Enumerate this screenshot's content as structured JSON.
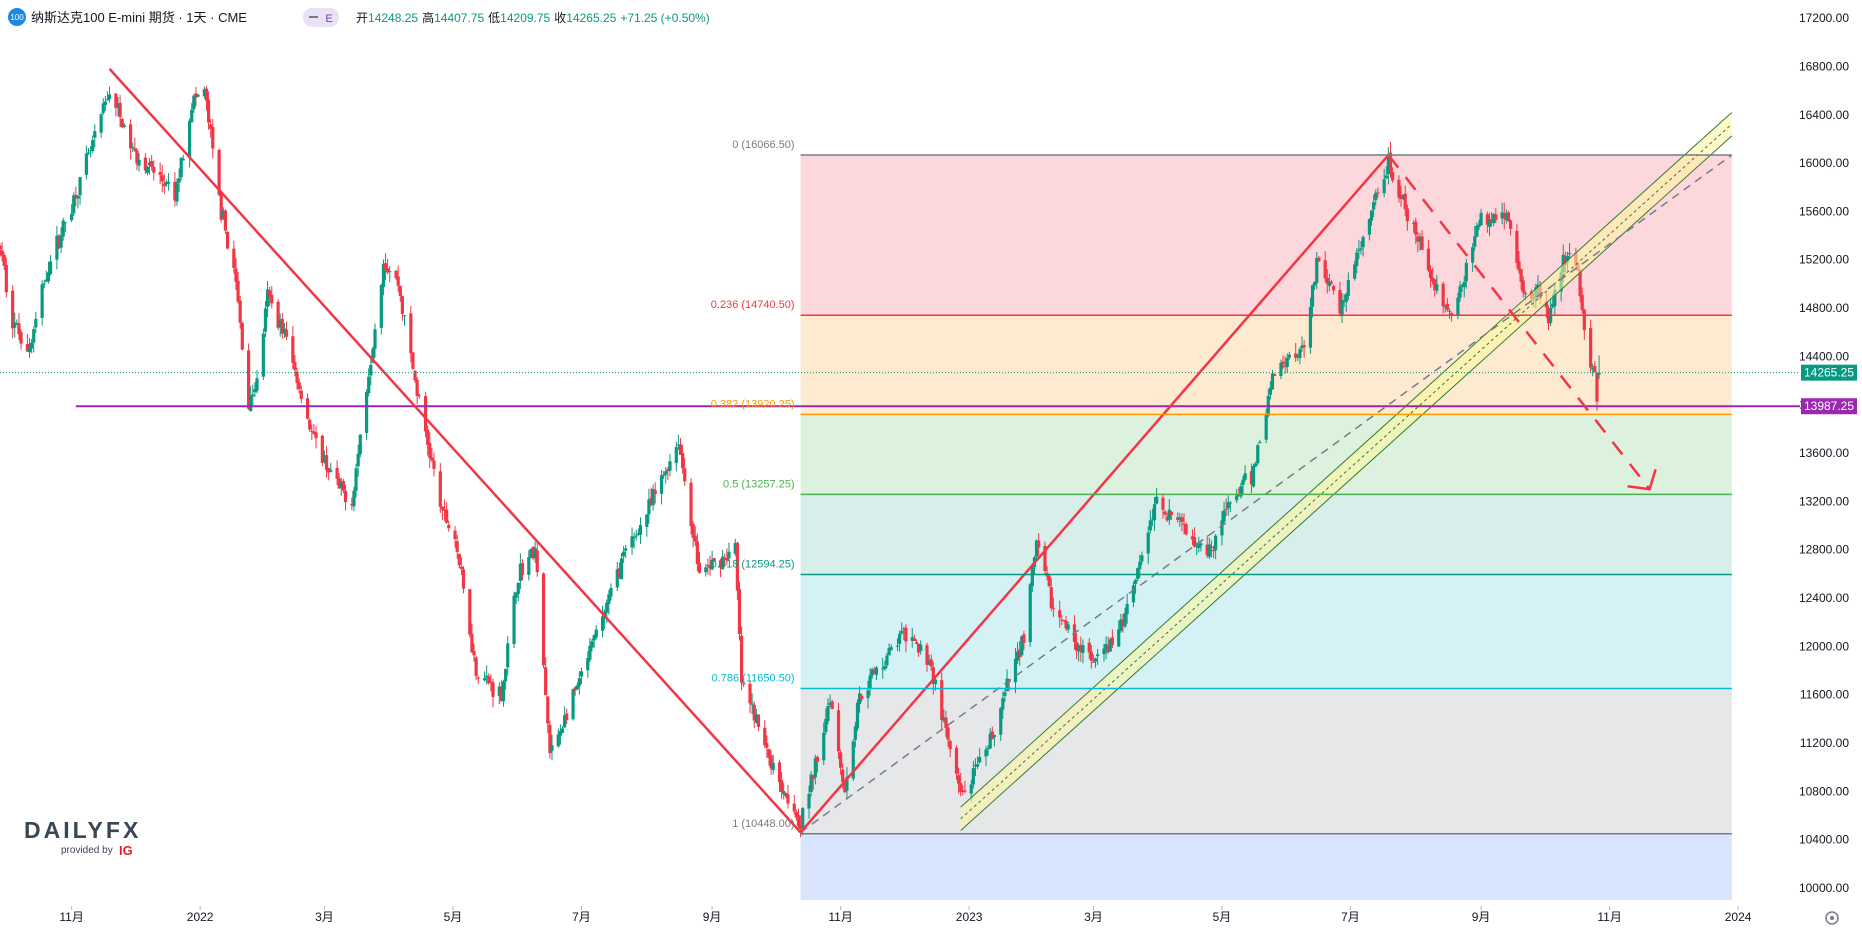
{
  "header": {
    "symbol_badge": "100",
    "title": "纳斯达克100 E-mini 期货 · 1天 · CME",
    "event_badge": "E",
    "ohlc_labels": [
      "开",
      "高",
      "低",
      "收"
    ],
    "open": "14248.25",
    "high": "14407.75",
    "low": "14209.75",
    "close": "14265.25",
    "change": "+71.25 (+0.50%)"
  },
  "brand": {
    "logo_text": "DAILYFX",
    "provided_by": "provided by",
    "provider": "IG"
  },
  "colors": {
    "up": "#089981",
    "down": "#f23645",
    "trend": "#f23645",
    "support": "#9c27b0",
    "price_tag": "#089981"
  },
  "icons": {
    "settings": "gear-icon"
  },
  "chart_data": {
    "type": "candlestick",
    "symbol": "纳斯达克100 E-mini 期货",
    "interval": "1天",
    "exchange": "CME",
    "ylim": [
      9900,
      17350
    ],
    "y_ticks": [
      10000,
      10400,
      10800,
      11200,
      11600,
      12000,
      12400,
      12800,
      13200,
      13600,
      14000,
      14400,
      14800,
      15200,
      15600,
      16000,
      16400,
      16800,
      17200
    ],
    "y_tick_labels": [
      "10000.00",
      "10400.00",
      "10800.00",
      "11200.00",
      "11600.00",
      "12000.00",
      "12400.00",
      "12800.00",
      "13200.00",
      "13600.00",
      "14000.00",
      "14400.00",
      "14800.00",
      "15200.00",
      "15600.00",
      "16000.00",
      "16400.00",
      "16800.00",
      "17200.00"
    ],
    "x_range": [
      "2021-09-28",
      "2024-01-28"
    ],
    "x_ticks": [
      {
        "date": "2021-11-01",
        "label": "11月"
      },
      {
        "date": "2022-01-01",
        "label": "2022"
      },
      {
        "date": "2022-03-01",
        "label": "3月"
      },
      {
        "date": "2022-05-01",
        "label": "5月"
      },
      {
        "date": "2022-07-01",
        "label": "7月"
      },
      {
        "date": "2022-09-01",
        "label": "9月"
      },
      {
        "date": "2022-11-01",
        "label": "11月"
      },
      {
        "date": "2023-01-01",
        "label": "2023"
      },
      {
        "date": "2023-03-01",
        "label": "3月"
      },
      {
        "date": "2023-05-01",
        "label": "5月"
      },
      {
        "date": "2023-07-01",
        "label": "7月"
      },
      {
        "date": "2023-09-01",
        "label": "9月"
      },
      {
        "date": "2023-11-01",
        "label": "11月"
      },
      {
        "date": "2024-01-01",
        "label": "2024"
      }
    ],
    "anchors": [
      [
        "2021-09-28",
        15300
      ],
      [
        "2021-10-04",
        14700
      ],
      [
        "2021-10-12",
        14450
      ],
      [
        "2021-10-20",
        15100
      ],
      [
        "2021-11-01",
        15650
      ],
      [
        "2021-11-10",
        16100
      ],
      [
        "2021-11-19",
        16600
      ],
      [
        "2021-11-30",
        16100
      ],
      [
        "2021-12-14",
        15850
      ],
      [
        "2021-12-20",
        15700
      ],
      [
        "2021-12-28",
        16500
      ],
      [
        "2022-01-03",
        16600
      ],
      [
        "2022-01-10",
        15700
      ],
      [
        "2022-01-18",
        15000
      ],
      [
        "2022-01-24",
        14000
      ],
      [
        "2022-01-28",
        14200
      ],
      [
        "2022-02-02",
        14900
      ],
      [
        "2022-02-10",
        14600
      ],
      [
        "2022-02-24",
        13700
      ],
      [
        "2022-03-08",
        13300
      ],
      [
        "2022-03-14",
        13200
      ],
      [
        "2022-03-29",
        15200
      ],
      [
        "2022-04-05",
        15000
      ],
      [
        "2022-04-14",
        14100
      ],
      [
        "2022-04-26",
        13100
      ],
      [
        "2022-05-02",
        12900
      ],
      [
        "2022-05-12",
        11800
      ],
      [
        "2022-05-24",
        11600
      ],
      [
        "2022-06-01",
        12600
      ],
      [
        "2022-06-09",
        12800
      ],
      [
        "2022-06-16",
        11100
      ],
      [
        "2022-06-30",
        11700
      ],
      [
        "2022-07-08",
        12100
      ],
      [
        "2022-07-20",
        12700
      ],
      [
        "2022-08-01",
        13100
      ],
      [
        "2022-08-16",
        13700
      ],
      [
        "2022-08-26",
        12600
      ],
      [
        "2022-09-12",
        12800
      ],
      [
        "2022-09-15",
        11700
      ],
      [
        "2022-09-30",
        11000
      ],
      [
        "2022-10-13",
        10550
      ],
      [
        "2022-10-20",
        11000
      ],
      [
        "2022-10-27",
        11600
      ],
      [
        "2022-11-03",
        10800
      ],
      [
        "2022-11-10",
        11600
      ],
      [
        "2022-11-30",
        12100
      ],
      [
        "2022-12-13",
        11900
      ],
      [
        "2022-12-28",
        10750
      ],
      [
        "2023-01-09",
        11100
      ],
      [
        "2023-01-27",
        12100
      ],
      [
        "2023-02-02",
        12850
      ],
      [
        "2023-02-10",
        12300
      ],
      [
        "2023-03-01",
        11850
      ],
      [
        "2023-03-13",
        12100
      ],
      [
        "2023-03-31",
        13200
      ],
      [
        "2023-04-25",
        12800
      ],
      [
        "2023-05-05",
        13200
      ],
      [
        "2023-05-15",
        13400
      ],
      [
        "2023-05-26",
        14300
      ],
      [
        "2023-06-09",
        14500
      ],
      [
        "2023-06-15",
        15200
      ],
      [
        "2023-06-26",
        14800
      ],
      [
        "2023-07-06",
        15300
      ],
      [
        "2023-07-19",
        16000
      ],
      [
        "2023-07-27",
        15600
      ],
      [
        "2023-08-03",
        15300
      ],
      [
        "2023-08-18",
        14700
      ],
      [
        "2023-08-31",
        15500
      ],
      [
        "2023-09-13",
        15600
      ],
      [
        "2023-09-21",
        14900
      ],
      [
        "2023-09-29",
        14950
      ],
      [
        "2023-10-03",
        14700
      ],
      [
        "2023-10-12",
        15300
      ],
      [
        "2023-10-17",
        15100
      ],
      [
        "2023-10-20",
        14600
      ],
      [
        "2023-10-26",
        14100
      ],
      [
        "2023-10-30",
        14265.25
      ]
    ],
    "last_candle": {
      "open": 14248.25,
      "high": 14407.75,
      "low": 14209.75,
      "close": 14265.25
    },
    "fibonacci": [
      {
        "ratio": "0",
        "price": 16066.5,
        "label": "0 (16066.50)",
        "color": "#787b86",
        "fill": "#fbd0d5"
      },
      {
        "ratio": "0.236",
        "price": 14740.5,
        "label": "0.236 (14740.50)",
        "color": "#f23645",
        "fill": "#fde6c9"
      },
      {
        "ratio": "0.382",
        "price": 13920.25,
        "label": "0.382 (13920.25)",
        "color": "#ff9800",
        "fill": "#d6eed8"
      },
      {
        "ratio": "0.5",
        "price": 13257.25,
        "label": "0.5 (13257.25)",
        "color": "#4caf50",
        "fill": "#d0ebe6"
      },
      {
        "ratio": "0.618",
        "price": 12594.25,
        "label": "0.618 (12594.25)",
        "color": "#089981",
        "fill": "#cdf0f3"
      },
      {
        "ratio": "0.786",
        "price": 11650.5,
        "label": "0.786 (11650.50)",
        "color": "#00bcd4",
        "fill": "#e2e3e5"
      },
      {
        "ratio": "1",
        "price": 10448.0,
        "label": "1 (10448.00)",
        "color": "#787b86",
        "fill": "#d2dffd"
      }
    ],
    "fib_x_range": [
      "2022-10-13",
      "2023-12-29"
    ],
    "trendlines": [
      {
        "name": "downtrend",
        "from": [
          "2021-11-19",
          16780
        ],
        "to": [
          "2022-10-13",
          10460
        ],
        "style": "solid"
      },
      {
        "name": "uptrend",
        "from": [
          "2022-10-13",
          10460
        ],
        "to": [
          "2023-07-19",
          16066.5
        ],
        "style": "solid"
      }
    ],
    "forecast": {
      "from": [
        "2023-07-19",
        16066.5
      ],
      "to": [
        "2023-11-20",
        13300
      ],
      "style": "dashed",
      "arrow": true
    },
    "channel": {
      "from": [
        "2022-12-28",
        10550
      ],
      "to": [
        "2023-12-29",
        16300
      ],
      "dashed_center": {
        "from": [
          "2022-10-13",
          10460
        ],
        "to": [
          "2023-12-29",
          16066.5
        ]
      }
    },
    "horizontal_lines": [
      {
        "name": "support",
        "price": 13987.25,
        "label": "13987.25",
        "start": "2021-11-03",
        "color": "#9c27b0"
      }
    ],
    "current_price": {
      "value": 14265.25,
      "label": "14265.25",
      "color": "#089981"
    }
  }
}
